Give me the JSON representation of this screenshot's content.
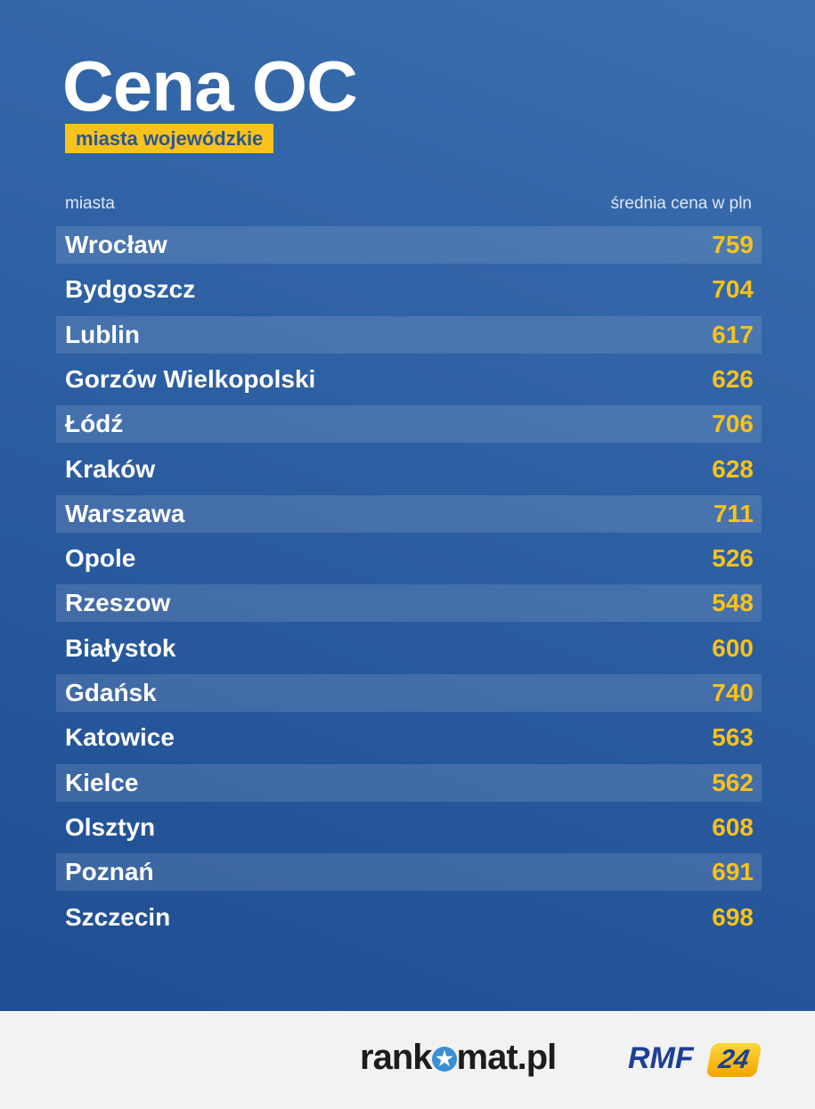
{
  "chart_data": {
    "type": "table",
    "title": "Cena OC",
    "subtitle": "miasta wojewódzkie",
    "columns": [
      "miasta",
      "średnia cena w pln"
    ],
    "rows": [
      {
        "city": "Wrocław",
        "value": 759
      },
      {
        "city": "Bydgoszcz",
        "value": 704
      },
      {
        "city": "Lublin",
        "value": 617
      },
      {
        "city": "Gorzów Wielkopolski",
        "value": 626
      },
      {
        "city": "Łódź",
        "value": 706
      },
      {
        "city": "Kraków",
        "value": 628
      },
      {
        "city": "Warszawa",
        "value": 711
      },
      {
        "city": "Opole",
        "value": 526
      },
      {
        "city": "Rzeszow",
        "value": 548
      },
      {
        "city": "Białystok",
        "value": 600
      },
      {
        "city": "Gdańsk",
        "value": 740
      },
      {
        "city": "Katowice",
        "value": 563
      },
      {
        "city": "Kielce",
        "value": 562
      },
      {
        "city": "Olsztyn",
        "value": 608
      },
      {
        "city": "Poznań",
        "value": 691
      },
      {
        "city": "Szczecin",
        "value": 698
      }
    ]
  },
  "footer": {
    "logo1": "rankomat.pl",
    "logo2": "RMF 24"
  },
  "colors": {
    "accent": "#f7c21b",
    "background": "#2d5fa3",
    "footer": "#f2f2f2"
  }
}
